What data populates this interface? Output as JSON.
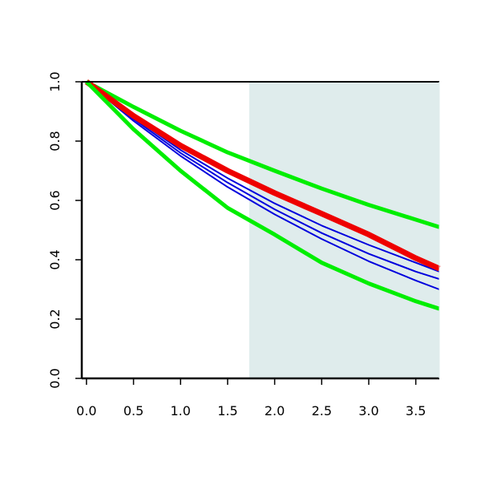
{
  "chart_data": {
    "type": "line",
    "title": "",
    "xlabel": "",
    "ylabel": "",
    "xlim": [
      -0.05,
      3.75
    ],
    "ylim": [
      0.0,
      1.0
    ],
    "x_ticks": [
      0.0,
      0.5,
      1.0,
      1.5,
      2.0,
      2.5,
      3.0,
      3.5
    ],
    "x_tick_labels": [
      "0.0",
      "0.5",
      "1.0",
      "1.5",
      "2.0",
      "2.5",
      "3.0",
      "3.5"
    ],
    "y_ticks": [
      0.0,
      0.2,
      0.4,
      0.6,
      0.8,
      1.0
    ],
    "y_tick_labels": [
      "0.0",
      "0.2",
      "0.4",
      "0.6",
      "0.8",
      "1.0"
    ],
    "grid": false,
    "legend": "none",
    "shaded_region": {
      "x_start": 1.73,
      "x_end": 3.75,
      "color": "#dfecec"
    },
    "series": [
      {
        "color": "#00ee00",
        "width": 5,
        "x": [
          0.0,
          0.5,
          1.0,
          1.5,
          2.0,
          2.5,
          3.0,
          3.5,
          3.75
        ],
        "y": [
          1.0,
          0.915,
          0.835,
          0.762,
          0.7,
          0.64,
          0.585,
          0.535,
          0.51
        ]
      },
      {
        "color": "#0000dd",
        "width": 2,
        "x": [
          0.0,
          0.5,
          1.0,
          1.5,
          2.0,
          2.5,
          3.0,
          3.5,
          3.75
        ],
        "y": [
          1.0,
          0.88,
          0.77,
          0.675,
          0.59,
          0.515,
          0.45,
          0.39,
          0.36
        ]
      },
      {
        "color": "#0000dd",
        "width": 2,
        "x": [
          0.0,
          0.5,
          1.0,
          1.5,
          2.0,
          2.5,
          3.0,
          3.5,
          3.75
        ],
        "y": [
          1.0,
          0.875,
          0.76,
          0.66,
          0.57,
          0.49,
          0.42,
          0.36,
          0.335
        ]
      },
      {
        "color": "#0000dd",
        "width": 2,
        "x": [
          0.0,
          0.5,
          1.0,
          1.5,
          2.0,
          2.5,
          3.0,
          3.5,
          3.75
        ],
        "y": [
          1.0,
          0.868,
          0.75,
          0.645,
          0.553,
          0.47,
          0.395,
          0.33,
          0.3
        ]
      },
      {
        "color": "#ee0000",
        "width": 7,
        "x": [
          0.0,
          0.5,
          1.0,
          1.5,
          2.0,
          2.5,
          3.0,
          3.5,
          3.75
        ],
        "y": [
          1.0,
          0.885,
          0.785,
          0.7,
          0.625,
          0.555,
          0.485,
          0.405,
          0.37
        ]
      },
      {
        "color": "#00ee00",
        "width": 5,
        "x": [
          0.0,
          0.5,
          1.0,
          1.5,
          2.0,
          2.5,
          3.0,
          3.5,
          3.75
        ],
        "y": [
          1.0,
          0.84,
          0.7,
          0.575,
          0.485,
          0.39,
          0.32,
          0.26,
          0.235
        ]
      }
    ]
  }
}
